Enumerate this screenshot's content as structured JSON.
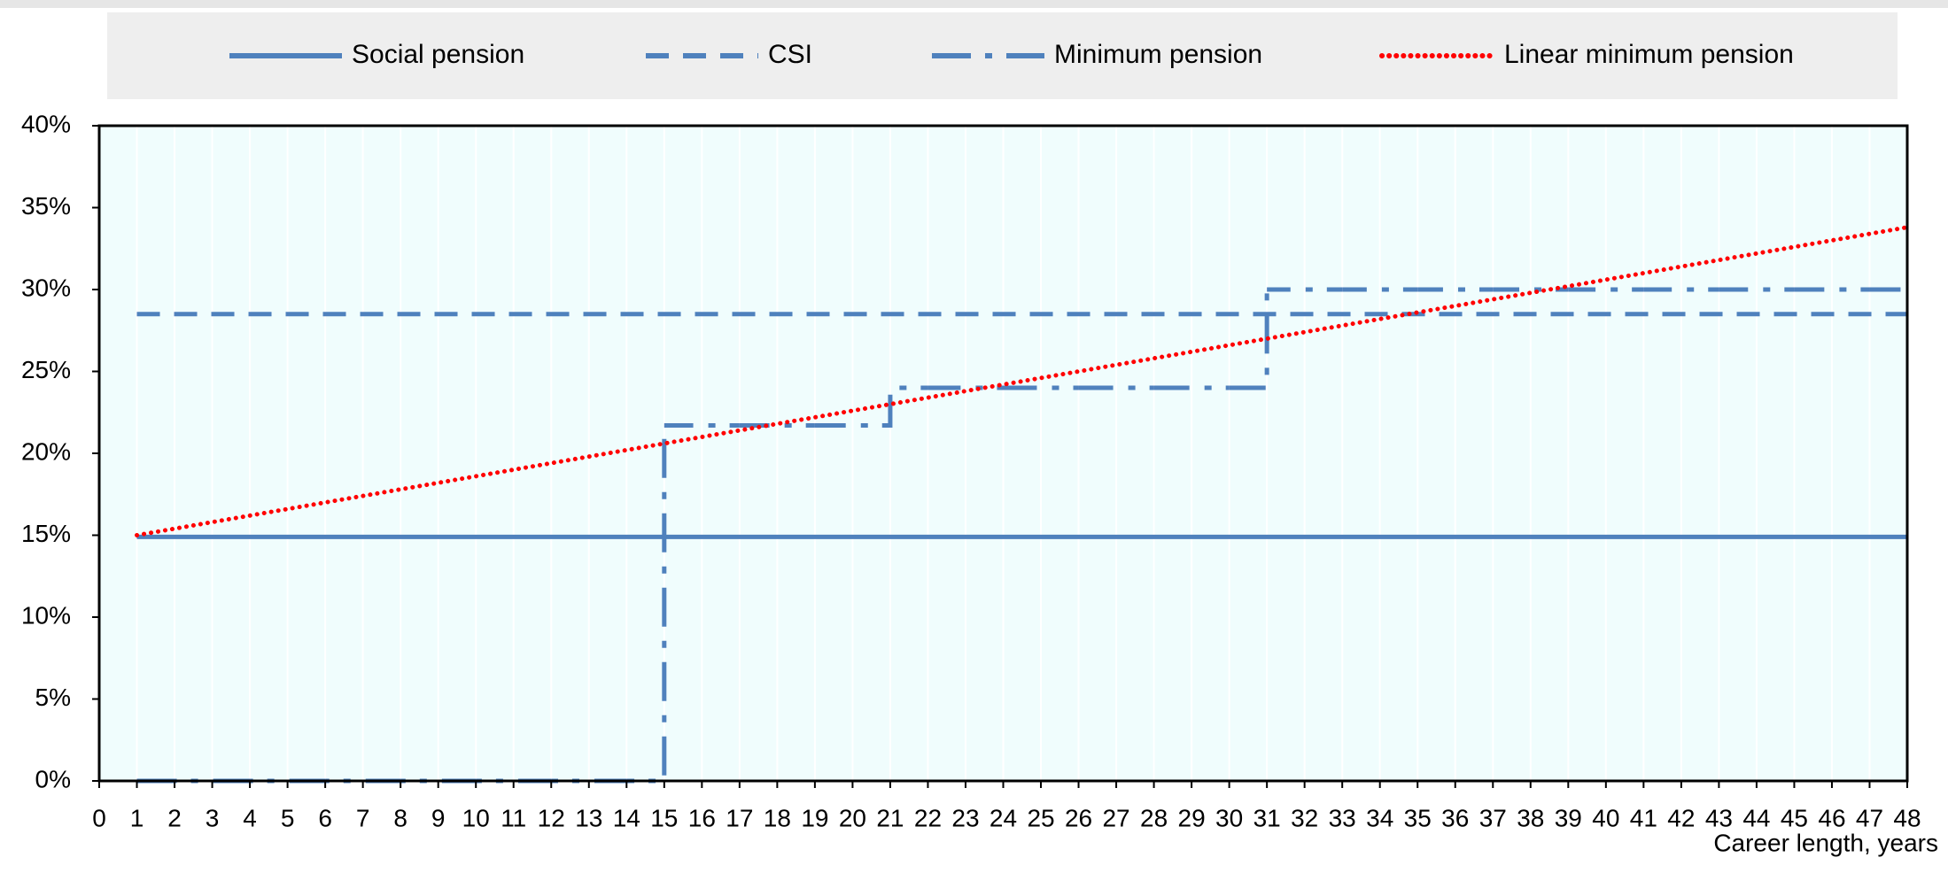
{
  "chart_data": {
    "type": "line",
    "x_label": "Career length, years",
    "x": [
      1,
      2,
      3,
      4,
      5,
      6,
      7,
      8,
      9,
      10,
      11,
      12,
      13,
      14,
      15,
      16,
      17,
      18,
      19,
      20,
      21,
      22,
      23,
      24,
      25,
      26,
      27,
      28,
      29,
      30,
      31,
      32,
      33,
      34,
      35,
      36,
      37,
      38,
      39,
      40,
      41,
      42,
      43,
      44,
      45,
      46,
      47,
      48
    ],
    "series": [
      {
        "name": "Social pension",
        "color": "#4f81bd",
        "line_style": "solid",
        "values": [
          14.9,
          14.9,
          14.9,
          14.9,
          14.9,
          14.9,
          14.9,
          14.9,
          14.9,
          14.9,
          14.9,
          14.9,
          14.9,
          14.9,
          14.9,
          14.9,
          14.9,
          14.9,
          14.9,
          14.9,
          14.9,
          14.9,
          14.9,
          14.9,
          14.9,
          14.9,
          14.9,
          14.9,
          14.9,
          14.9,
          14.9,
          14.9,
          14.9,
          14.9,
          14.9,
          14.9,
          14.9,
          14.9,
          14.9,
          14.9,
          14.9,
          14.9,
          14.9,
          14.9,
          14.9,
          14.9,
          14.9,
          14.9
        ]
      },
      {
        "name": "CSI",
        "color": "#4f81bd",
        "line_style": "dashed",
        "values": [
          28.5,
          28.5,
          28.5,
          28.5,
          28.5,
          28.5,
          28.5,
          28.5,
          28.5,
          28.5,
          28.5,
          28.5,
          28.5,
          28.5,
          28.5,
          28.5,
          28.5,
          28.5,
          28.5,
          28.5,
          28.5,
          28.5,
          28.5,
          28.5,
          28.5,
          28.5,
          28.5,
          28.5,
          28.5,
          28.5,
          28.5,
          28.5,
          28.5,
          28.5,
          28.5,
          28.5,
          28.5,
          28.5,
          28.5,
          28.5,
          28.5,
          28.5,
          28.5,
          28.5,
          28.5,
          28.5,
          28.5,
          28.5
        ]
      },
      {
        "name": "Minimum pension",
        "color": "#4f81bd",
        "line_style": "dashdot",
        "step": true,
        "values": [
          0,
          0,
          0,
          0,
          0,
          0,
          0,
          0,
          0,
          0,
          0,
          0,
          0,
          0,
          21.7,
          21.7,
          21.7,
          21.7,
          21.7,
          21.7,
          24,
          24,
          24,
          24,
          24,
          24,
          24,
          24,
          24,
          24,
          30,
          30,
          30,
          30,
          30,
          30,
          30,
          30,
          30,
          30,
          30,
          30,
          30,
          30,
          30,
          30,
          30,
          30
        ]
      },
      {
        "name": "Linear minimum pension",
        "color": "#ff0000",
        "line_style": "dotted",
        "values": [
          15,
          15.4,
          15.8,
          16.2,
          16.6,
          17,
          17.4,
          17.8,
          18.2,
          18.6,
          19,
          19.4,
          19.8,
          20.2,
          20.6,
          21,
          21.4,
          21.8,
          22.2,
          22.6,
          23,
          23.4,
          23.8,
          24.2,
          24.6,
          25,
          25.4,
          25.8,
          26.2,
          26.6,
          27,
          27.4,
          27.8,
          28.2,
          28.6,
          29,
          29.4,
          29.8,
          30.2,
          30.6,
          31,
          31.4,
          31.8,
          32.2,
          32.6,
          33,
          33.4,
          33.8
        ]
      }
    ],
    "xlim": [
      0,
      48
    ],
    "xticks": [
      0,
      1,
      2,
      3,
      4,
      5,
      6,
      7,
      8,
      9,
      10,
      11,
      12,
      13,
      14,
      15,
      16,
      17,
      18,
      19,
      20,
      21,
      22,
      23,
      24,
      25,
      26,
      27,
      28,
      29,
      30,
      31,
      32,
      33,
      34,
      35,
      36,
      37,
      38,
      39,
      40,
      41,
      42,
      43,
      44,
      45,
      46,
      47,
      48
    ],
    "ylim": [
      0,
      40
    ],
    "yticks": [
      {
        "value": 0,
        "label": "0%"
      },
      {
        "value": 5,
        "label": "5%"
      },
      {
        "value": 10,
        "label": "10%"
      },
      {
        "value": 15,
        "label": "15%"
      },
      {
        "value": 20,
        "label": "20%"
      },
      {
        "value": 25,
        "label": "25%"
      },
      {
        "value": 30,
        "label": "30%"
      },
      {
        "value": 35,
        "label": "35%"
      },
      {
        "value": 40,
        "label": "40%"
      }
    ],
    "grid": true,
    "legend": "top"
  }
}
